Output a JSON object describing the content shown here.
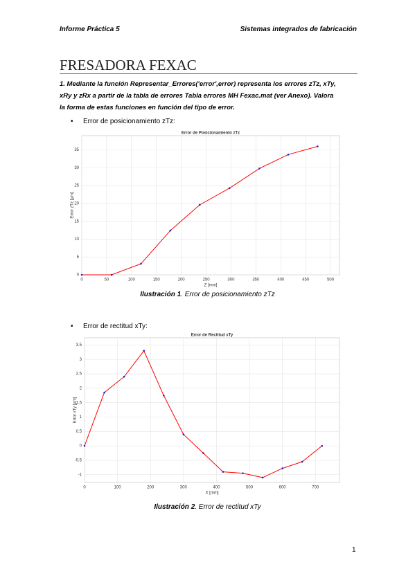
{
  "header": {
    "left": "Informe Práctica 5",
    "right": "Sistemas integrados de fabricación"
  },
  "title": "FRESADORA FEXAC",
  "paragraph": "1. Mediante la función Representar_Errores('error',error) representa los errores zTz, xTy, xRy y zRx a partir de la tabla de errores Tabla errores MH Fexac.mat (ver Anexo). Valora la forma de estas funciones en función del tipo de error.",
  "bullets": [
    "Error de posicionamiento zTz:",
    "Error de rectitud xTy:"
  ],
  "captions": [
    {
      "label": "Ilustración 1",
      "text": ". Error de posicionamiento zTz"
    },
    {
      "label": "Ilustración 2",
      "text": ". Error de rectitud xTy"
    }
  ],
  "page_number": "1",
  "chart_data": [
    {
      "type": "line",
      "title": "Error de Posicionamiento zTz",
      "xlabel": "Z [mm]",
      "ylabel": "Error zTz [µm]",
      "x": [
        0,
        60,
        119,
        178,
        237,
        297,
        357,
        415,
        474
      ],
      "values": [
        0,
        0,
        3.1,
        12.4,
        19.6,
        24.3,
        29.8,
        33.7,
        36
      ],
      "color": "#ff0000",
      "marker_color": "#2222cc",
      "xlim": [
        0,
        518
      ],
      "ylim": [
        0,
        39
      ],
      "xticks": [
        0,
        50,
        100,
        150,
        200,
        250,
        300,
        350,
        400,
        450,
        500
      ],
      "yticks": [
        0,
        5,
        10,
        15,
        20,
        25,
        30,
        35
      ],
      "grid": true
    },
    {
      "type": "line",
      "title": "Error de Rectitud xTy",
      "xlabel": "X [mm]",
      "ylabel": "Error xTy [µm]",
      "x": [
        0,
        60,
        120,
        180,
        240,
        300,
        360,
        420,
        480,
        540,
        600,
        660,
        720
      ],
      "values": [
        0,
        1.85,
        2.4,
        3.3,
        1.75,
        0.4,
        -0.25,
        -0.9,
        -0.95,
        -1.1,
        -0.78,
        -0.55,
        0
      ],
      "color": "#ff0000",
      "marker_color": "#2222cc",
      "xlim": [
        0,
        773
      ],
      "ylim": [
        -1.27,
        3.75
      ],
      "xticks": [
        0,
        100,
        200,
        300,
        400,
        500,
        600,
        700
      ],
      "yticks": [
        -1,
        -0.5,
        0,
        0.5,
        1,
        1.5,
        2,
        2.5,
        3,
        3.5
      ],
      "grid": true
    }
  ]
}
